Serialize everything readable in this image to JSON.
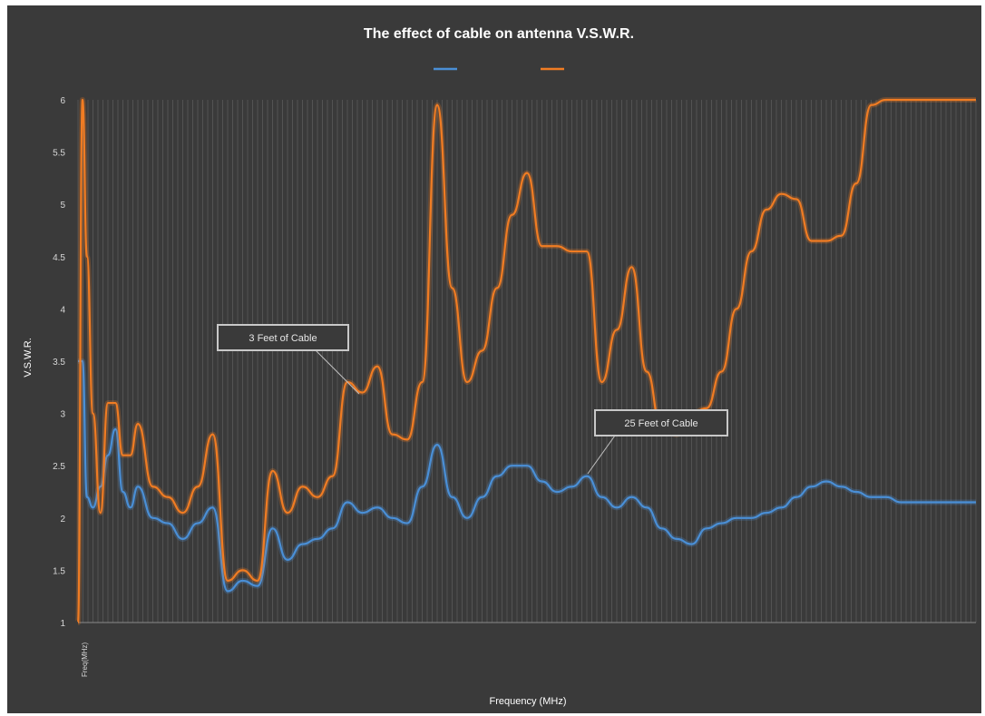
{
  "chart_data": {
    "type": "line",
    "title": "The effect of cable on antenna V.S.W.R.",
    "xlabel": "Frequency (MHz)",
    "ylabel": "V.S.W.R.",
    "ylim": [
      1,
      6
    ],
    "yticks": [
      "1",
      "1.5",
      "2",
      "2.5",
      "3",
      "3.5",
      "4",
      "4.5",
      "5",
      "5.5",
      "6"
    ],
    "xlim": [
      1,
      61
    ],
    "xticks": {
      "first_label": "Freq(MHz)",
      "labels": [
        "",
        "",
        "",
        "",
        "",
        "",
        "",
        "",
        "",
        "",
        "",
        "",
        "",
        "",
        "",
        "",
        "",
        "",
        "",
        "",
        "",
        "",
        "",
        "",
        "",
        "",
        "",
        "",
        "",
        "",
        ""
      ]
    },
    "grid": true,
    "legend_position": "top",
    "series": [
      {
        "name": "",
        "color": "#4a8fd6",
        "x": [
          1,
          1.3,
          1.6,
          2,
          2.5,
          3,
          3.5,
          4,
          4.5,
          5,
          6,
          7,
          8,
          9,
          10,
          11,
          12,
          13,
          14,
          15,
          16,
          17,
          18,
          19,
          20,
          21,
          22,
          23,
          24,
          25,
          26,
          27,
          28,
          29,
          30,
          31,
          32,
          33,
          34,
          35,
          36,
          37,
          38,
          39,
          40,
          41,
          42,
          43,
          44,
          45,
          46,
          47,
          48,
          49,
          50,
          51,
          52,
          53,
          54,
          55,
          56,
          57,
          58,
          59,
          60,
          61
        ],
        "values": [
          3.5,
          3.5,
          2.2,
          2.1,
          2.3,
          2.6,
          2.85,
          2.25,
          2.1,
          2.3,
          2.0,
          1.95,
          1.8,
          1.95,
          2.1,
          1.3,
          1.4,
          1.35,
          1.9,
          1.6,
          1.75,
          1.8,
          1.9,
          2.15,
          2.05,
          2.1,
          2.0,
          1.95,
          2.3,
          2.7,
          2.2,
          2.0,
          2.2,
          2.4,
          2.5,
          2.5,
          2.35,
          2.25,
          2.3,
          2.4,
          2.2,
          2.1,
          2.2,
          2.1,
          1.9,
          1.8,
          1.75,
          1.9,
          1.95,
          2.0,
          2.0,
          2.05,
          2.1,
          2.2,
          2.3,
          2.35,
          2.3,
          2.25,
          2.2,
          2.2,
          2.15,
          2.15,
          2.15,
          2.15,
          2.15,
          2.15
        ]
      },
      {
        "name": "",
        "color": "#f07c23",
        "x": [
          1,
          1.3,
          1.6,
          2,
          2.5,
          3,
          3.5,
          4,
          4.5,
          5,
          6,
          7,
          8,
          9,
          10,
          11,
          12,
          13,
          14,
          15,
          16,
          17,
          18,
          19,
          20,
          21,
          22,
          23,
          24,
          25,
          26,
          27,
          28,
          29,
          30,
          31,
          32,
          33,
          34,
          35,
          36,
          37,
          38,
          39,
          40,
          41,
          42,
          43,
          44,
          45,
          46,
          47,
          48,
          49,
          50,
          51,
          52,
          53,
          54,
          55,
          56,
          57,
          58,
          59,
          60,
          61
        ],
        "values": [
          1.0,
          6.0,
          4.5,
          3.0,
          2.05,
          3.1,
          3.1,
          2.6,
          2.6,
          2.9,
          2.3,
          2.2,
          2.05,
          2.3,
          2.8,
          1.4,
          1.5,
          1.4,
          2.45,
          2.05,
          2.3,
          2.2,
          2.4,
          3.3,
          3.2,
          3.45,
          2.8,
          2.75,
          3.3,
          5.95,
          4.2,
          3.3,
          3.6,
          4.2,
          4.9,
          5.3,
          4.6,
          4.6,
          4.55,
          4.55,
          3.3,
          3.8,
          4.4,
          3.4,
          2.85,
          2.8,
          3.0,
          3.05,
          3.4,
          4.0,
          4.55,
          4.95,
          5.1,
          5.05,
          4.65,
          4.65,
          4.7,
          5.2,
          5.95,
          6.0,
          6.0,
          6.0,
          6.0,
          6.0,
          6.0,
          6.0
        ]
      }
    ],
    "annotations": [
      {
        "text": "3 Feet of Cable"
      },
      {
        "text": "25 Feet of Cable"
      }
    ]
  }
}
